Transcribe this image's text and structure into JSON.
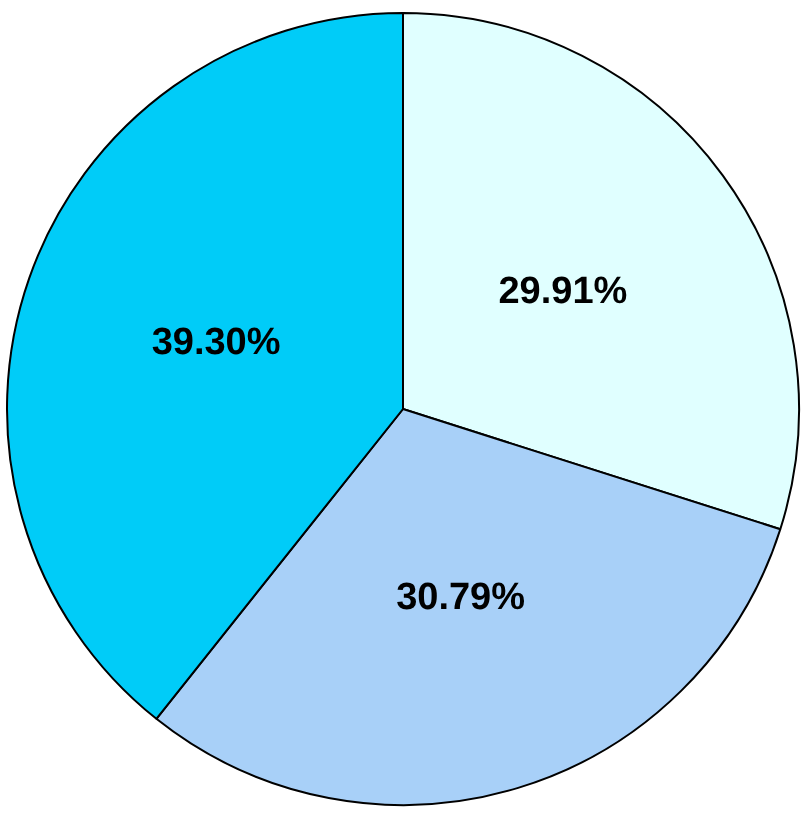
{
  "chart_data": {
    "type": "pie",
    "categories": [
      null,
      null,
      null
    ],
    "values": [
      29.91,
      30.79,
      39.3
    ],
    "value_labels": [
      "29.91%",
      "30.79%",
      "39.30%"
    ],
    "colors": [
      "#e0ffff",
      "#a8d0f8",
      "#00ccf8"
    ]
  }
}
